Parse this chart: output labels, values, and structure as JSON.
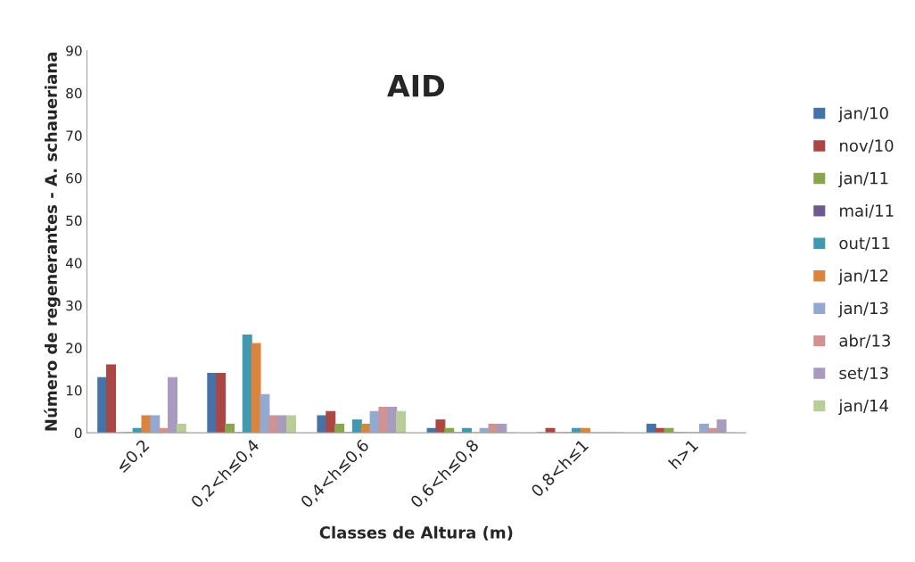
{
  "chart_data": {
    "type": "bar",
    "title": "AID",
    "xlabel": "Classes de Altura (m)",
    "ylabel": "Número de regenerantes - A. schaueriana",
    "categories": [
      "≤0,2",
      "0,2<h≤0,4",
      "0,4<h≤0,6",
      "0,6<h≤0,8",
      "0,8<h≤1",
      "h>1"
    ],
    "ylim": [
      0,
      90
    ],
    "yticks": [
      0,
      10,
      20,
      30,
      40,
      50,
      60,
      70,
      80,
      90
    ],
    "grid": false,
    "legend": "right",
    "series": [
      {
        "name": "jan/10",
        "color": "#4572a7",
        "values": [
          13,
          14,
          4,
          1,
          0,
          2
        ]
      },
      {
        "name": "nov/10",
        "color": "#aa4643",
        "values": [
          16,
          14,
          5,
          3,
          1,
          1
        ]
      },
      {
        "name": "jan/11",
        "color": "#89a54e",
        "values": [
          0,
          2,
          2,
          1,
          0,
          1
        ]
      },
      {
        "name": "mai/11",
        "color": "#71588f",
        "values": [
          0,
          0,
          0,
          0,
          0,
          0
        ]
      },
      {
        "name": "out/11",
        "color": "#4198af",
        "values": [
          1,
          23,
          3,
          1,
          1,
          0
        ]
      },
      {
        "name": "jan/12",
        "color": "#db843d",
        "values": [
          4,
          21,
          2,
          0,
          1,
          0
        ]
      },
      {
        "name": "jan/13",
        "color": "#93a9cf",
        "values": [
          4,
          9,
          5,
          1,
          0,
          2
        ]
      },
      {
        "name": "abr/13",
        "color": "#d19392",
        "values": [
          1,
          4,
          6,
          2,
          0,
          1
        ]
      },
      {
        "name": "set/13",
        "color": "#a99bbd",
        "values": [
          13,
          4,
          6,
          2,
          0,
          3
        ]
      },
      {
        "name": "jan/14",
        "color": "#b9cd96",
        "values": [
          2,
          4,
          5,
          0,
          0,
          0
        ]
      }
    ]
  }
}
